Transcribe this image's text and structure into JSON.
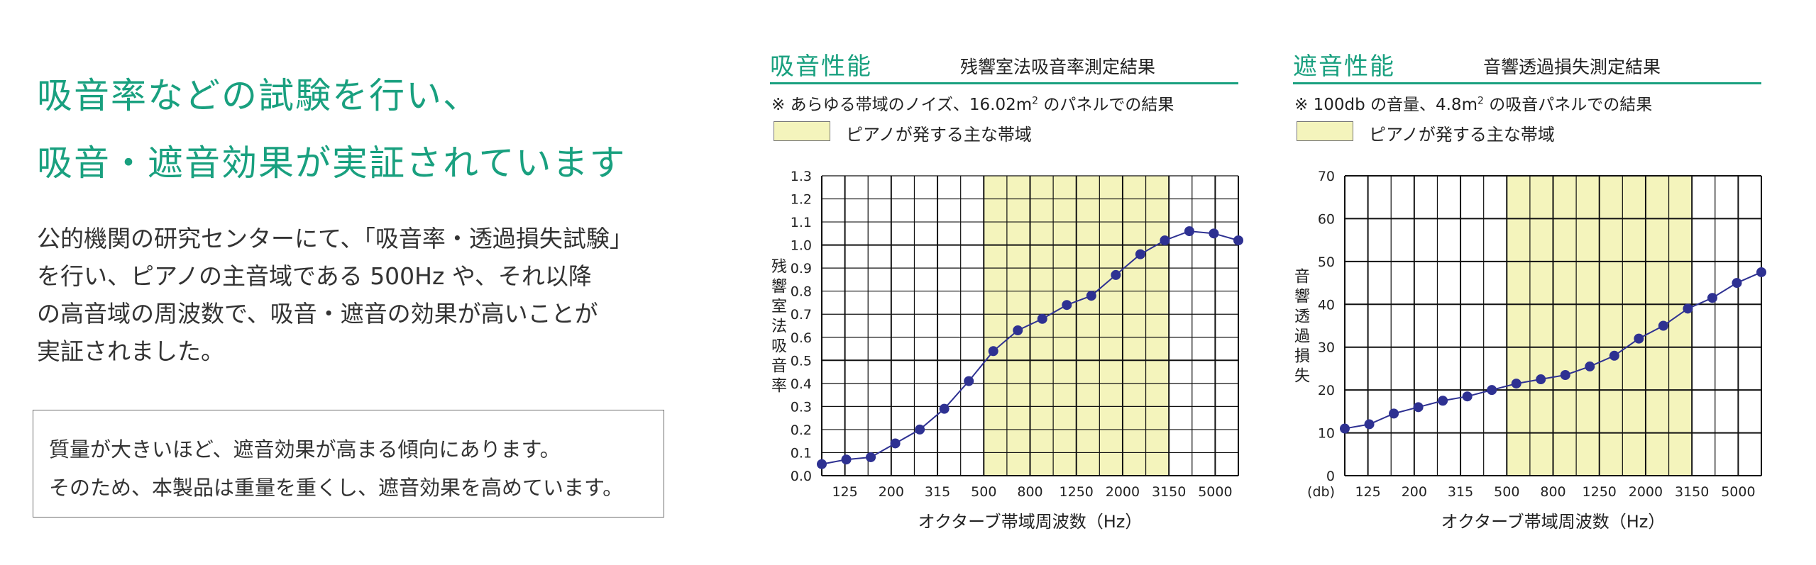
{
  "headline": {
    "line1": "吸音率などの試験を行い、",
    "line2": "吸音・遮音効果が実証されています"
  },
  "body": {
    "lines": [
      "公的機関の研究センターにて、「吸音率・透過損失試験」",
      "を行い、ピアノの主音域である 500Hz や、それ以降",
      "の高音域の周波数で、吸音・遮音の効果が高いことが",
      "実証されました。"
    ]
  },
  "note_box": {
    "lines": [
      "質量が大きいほど、遮音効果が高まる傾向にあります。",
      "そのため、本製品は重量を重くし、遮音効果を高めています。"
    ]
  },
  "colors": {
    "accent": "#19a07f",
    "band": "#f4f4bc",
    "series": "#2e3192",
    "text": "#333333"
  },
  "chart_data": [
    {
      "type": "line",
      "title": "吸音性能",
      "subtitle": "残響室法吸音率測定結果",
      "note_prefix": "※ あらゆる帯域のノイズ、16.02m",
      "note_sup": "2",
      "note_suffix": " のパネルでの結果",
      "legend_label": "ピアノが発する主な帯域",
      "ylabel": "残響室法吸音率",
      "xlabel": "オクターブ帯域周波数（Hz）",
      "ylim": [
        0,
        1.3
      ],
      "y_ticks": [
        "0.0",
        "0.1",
        "0.2",
        "0.3",
        "0.4",
        "0.5",
        "0.6",
        "0.7",
        "0.8",
        "0.9",
        "1.0",
        "1.1",
        "1.2",
        "1.3"
      ],
      "y_major_every": 5,
      "x_tick_labels": [
        "125",
        "200",
        "315",
        "500",
        "800",
        "1250",
        "2000",
        "3150",
        "5000"
      ],
      "y_unit_label": "",
      "band_range_index": [
        7,
        15
      ],
      "grid": true,
      "values": [
        0.05,
        0.07,
        0.08,
        0.14,
        0.2,
        0.29,
        0.41,
        0.54,
        0.63,
        0.68,
        0.74,
        0.78,
        0.87,
        0.96,
        1.02,
        1.06,
        1.05,
        1.02
      ]
    },
    {
      "type": "line",
      "title": "遮音性能",
      "subtitle": "音響透過損失測定結果",
      "note_prefix": "※ 100db の音量、4.8m",
      "note_sup": "2",
      "note_suffix": " の吸音パネルでの結果",
      "legend_label": "ピアノが発する主な帯域",
      "ylabel": "音響透過損失",
      "xlabel": "オクターブ帯域周波数（Hz）",
      "ylim": [
        0,
        70
      ],
      "y_ticks": [
        "0",
        "10",
        "20",
        "30",
        "40",
        "50",
        "60",
        "70"
      ],
      "y_major_every": 1,
      "x_tick_labels": [
        "125",
        "200",
        "315",
        "500",
        "800",
        "1250",
        "2000",
        "3150",
        "5000"
      ],
      "y_unit_label": "(db)",
      "band_range_index": [
        7,
        15
      ],
      "grid": true,
      "values": [
        11,
        12,
        14.5,
        16,
        17.5,
        18.5,
        20,
        21.5,
        22.5,
        23.5,
        25.5,
        28,
        32,
        35,
        39,
        41.5,
        45,
        47.5
      ]
    }
  ]
}
